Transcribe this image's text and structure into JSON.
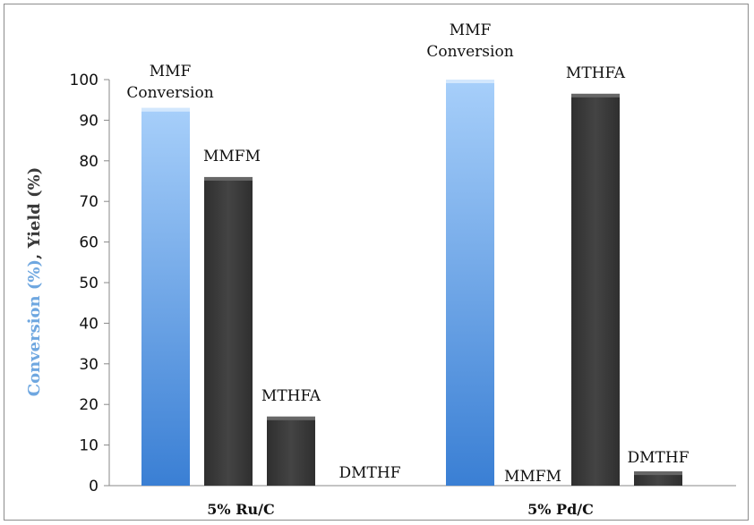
{
  "chart_data": {
    "type": "bar",
    "categories": [
      "5% Ru/C",
      "5% Pd/C"
    ],
    "series": [
      {
        "values": [
          93,
          100
        ],
        "color": "#4f8fd8"
      },
      {
        "values": [
          76,
          0
        ],
        "color": "#3b3b3b"
      },
      {
        "values": [
          17,
          96.5
        ],
        "color": "#3b3b3b"
      },
      {
        "values": [
          0,
          3.5
        ],
        "color": "#3b3b3b"
      }
    ],
    "bar_labels": [
      [
        "MMF Conversion",
        "MMFM",
        "MTHFA",
        "DMTHF"
      ],
      [
        "MMF Conversion",
        "MMFM",
        "MTHFA",
        "DMTHF"
      ]
    ],
    "ylabel_parts": [
      {
        "text": "Conversion (%)",
        "color": "#6fa7e0"
      },
      {
        "text": ", Yield (%)",
        "color": "#3a3a3a"
      }
    ],
    "ylim": [
      0,
      100
    ],
    "yticks": [
      "0",
      "10",
      "20",
      "30",
      "40",
      "50",
      "60",
      "70",
      "80",
      "90",
      "100"
    ],
    "grid": false,
    "legend": "none"
  }
}
